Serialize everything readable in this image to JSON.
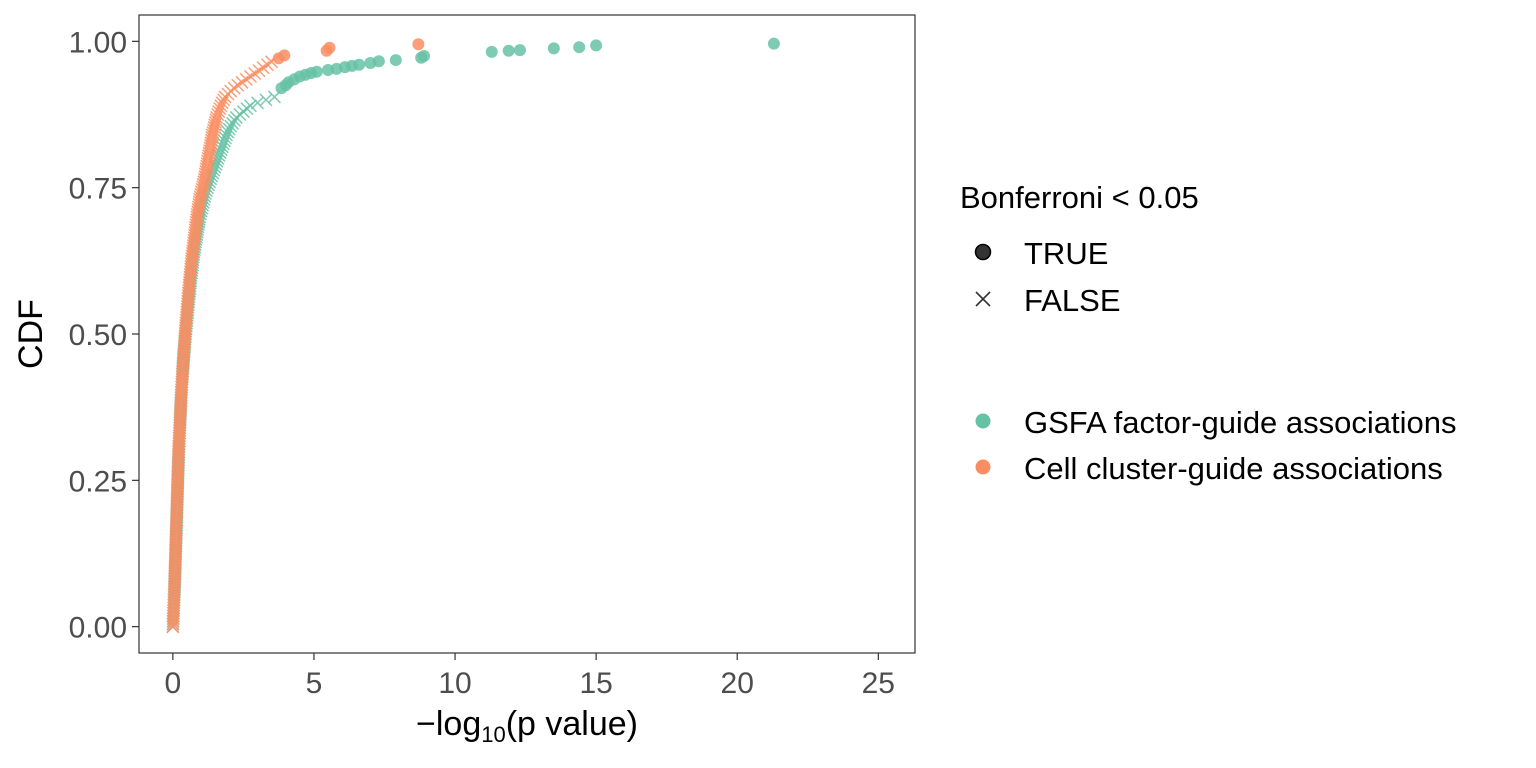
{
  "chart_data": {
    "type": "scatter",
    "title": "",
    "ylabel": "CDF",
    "xlabel": {
      "prefix": "−log",
      "subscript": "10",
      "suffix": "(p value)"
    },
    "xlim": [
      -1.2,
      26.3
    ],
    "ylim": [
      -0.045,
      1.045
    ],
    "x_ticks": [
      0,
      5,
      10,
      15,
      20,
      25
    ],
    "x_tick_labels": [
      "0",
      "5",
      "10",
      "15",
      "20",
      "25"
    ],
    "y_ticks": [
      0,
      0.25,
      0.5,
      0.75,
      1.0
    ],
    "y_tick_labels": [
      "0.00",
      "0.25",
      "0.50",
      "0.75",
      "1.00"
    ],
    "grid": false,
    "legend_position": "right",
    "legend_shape_title": "Bonferroni < 0.05",
    "legend_shapes": [
      {
        "label": "TRUE",
        "shape": "circle"
      },
      {
        "label": "FALSE",
        "shape": "cross"
      }
    ],
    "series": [
      {
        "name": "GSFA factor-guide associations",
        "color": "#66C2A5",
        "ecdf_false": [
          [
            0,
            0
          ],
          [
            0.05,
            0.05
          ],
          [
            0.1,
            0.12
          ],
          [
            0.15,
            0.2
          ],
          [
            0.2,
            0.28
          ],
          [
            0.25,
            0.34
          ],
          [
            0.3,
            0.4
          ],
          [
            0.38,
            0.46
          ],
          [
            0.45,
            0.5
          ],
          [
            0.55,
            0.55
          ],
          [
            0.65,
            0.6
          ],
          [
            0.75,
            0.64
          ],
          [
            0.85,
            0.67
          ],
          [
            0.95,
            0.7
          ],
          [
            1.05,
            0.72
          ],
          [
            1.15,
            0.74
          ],
          [
            1.3,
            0.76
          ],
          [
            1.45,
            0.78
          ],
          [
            1.6,
            0.8
          ],
          [
            1.75,
            0.82
          ],
          [
            1.9,
            0.84
          ],
          [
            2.05,
            0.855
          ],
          [
            2.25,
            0.87
          ],
          [
            2.5,
            0.88
          ],
          [
            2.75,
            0.89
          ],
          [
            3.0,
            0.895
          ],
          [
            3.3,
            0.9
          ],
          [
            3.6,
            0.905
          ]
        ],
        "true_points": [
          [
            3.85,
            0.92
          ],
          [
            4.0,
            0.925
          ],
          [
            4.1,
            0.93
          ],
          [
            4.3,
            0.935
          ],
          [
            4.5,
            0.94
          ],
          [
            4.7,
            0.943
          ],
          [
            4.9,
            0.946
          ],
          [
            5.1,
            0.948
          ],
          [
            5.5,
            0.951
          ],
          [
            5.8,
            0.953
          ],
          [
            6.1,
            0.956
          ],
          [
            6.35,
            0.958
          ],
          [
            6.6,
            0.96
          ],
          [
            7.0,
            0.963
          ],
          [
            7.3,
            0.966
          ],
          [
            7.9,
            0.968
          ],
          [
            8.8,
            0.972
          ],
          [
            8.9,
            0.975
          ],
          [
            11.3,
            0.982
          ],
          [
            11.9,
            0.984
          ],
          [
            12.3,
            0.985
          ],
          [
            13.5,
            0.988
          ],
          [
            14.4,
            0.99
          ],
          [
            15.0,
            0.993
          ],
          [
            21.3,
            0.996
          ]
        ]
      },
      {
        "name": "Cell cluster-guide associations",
        "color": "#FC8D62",
        "ecdf_false": [
          [
            0,
            0
          ],
          [
            0.05,
            0.06
          ],
          [
            0.1,
            0.14
          ],
          [
            0.15,
            0.22
          ],
          [
            0.2,
            0.3
          ],
          [
            0.27,
            0.37
          ],
          [
            0.35,
            0.44
          ],
          [
            0.45,
            0.51
          ],
          [
            0.55,
            0.57
          ],
          [
            0.65,
            0.62
          ],
          [
            0.75,
            0.66
          ],
          [
            0.85,
            0.7
          ],
          [
            0.95,
            0.73
          ],
          [
            1.1,
            0.76
          ],
          [
            1.25,
            0.8
          ],
          [
            1.4,
            0.84
          ],
          [
            1.55,
            0.87
          ],
          [
            1.7,
            0.89
          ],
          [
            1.85,
            0.905
          ],
          [
            2.05,
            0.915
          ],
          [
            2.3,
            0.925
          ],
          [
            2.6,
            0.935
          ],
          [
            2.9,
            0.945
          ],
          [
            3.2,
            0.955
          ],
          [
            3.5,
            0.965
          ]
        ],
        "true_points": [
          [
            3.75,
            0.971
          ],
          [
            3.95,
            0.976
          ],
          [
            5.45,
            0.984
          ],
          [
            5.55,
            0.989
          ],
          [
            8.7,
            0.995
          ]
        ]
      }
    ]
  }
}
